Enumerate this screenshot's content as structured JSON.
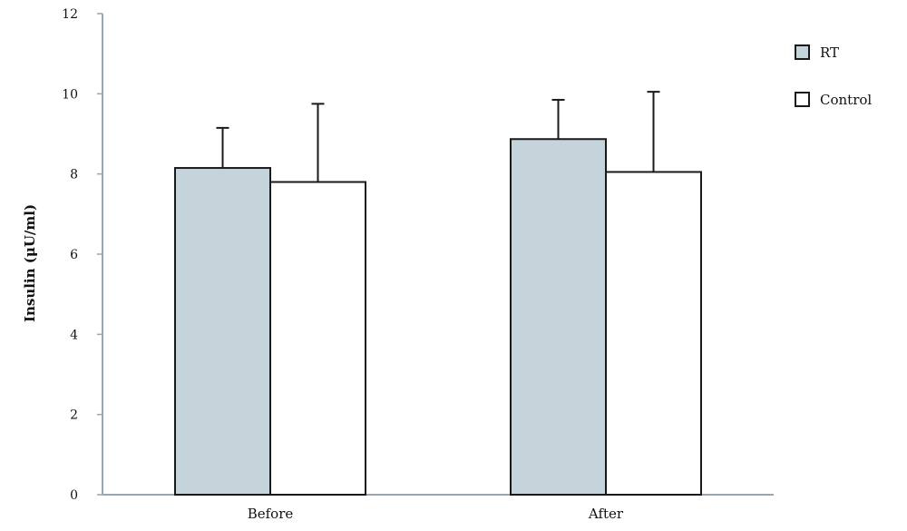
{
  "chart_data": {
    "type": "bar",
    "title": "",
    "xlabel": "",
    "ylabel": "Insulin (μU/ml)",
    "ylim": [
      0,
      12
    ],
    "yticks": [
      0,
      2,
      4,
      6,
      8,
      10,
      12
    ],
    "grid": false,
    "legend_position": "top-right",
    "categories": [
      "Before",
      "After"
    ],
    "series": [
      {
        "name": "RT",
        "values": [
          8.15,
          8.87
        ],
        "error": [
          1.0,
          0.98
        ],
        "color": "#c5d3da"
      },
      {
        "name": "Control",
        "values": [
          7.8,
          8.05
        ],
        "error": [
          1.95,
          2.0
        ],
        "color": "#ffffff"
      }
    ],
    "axis_color": "#9aa5ad",
    "bar_edge_color": "#1a1a1a"
  }
}
